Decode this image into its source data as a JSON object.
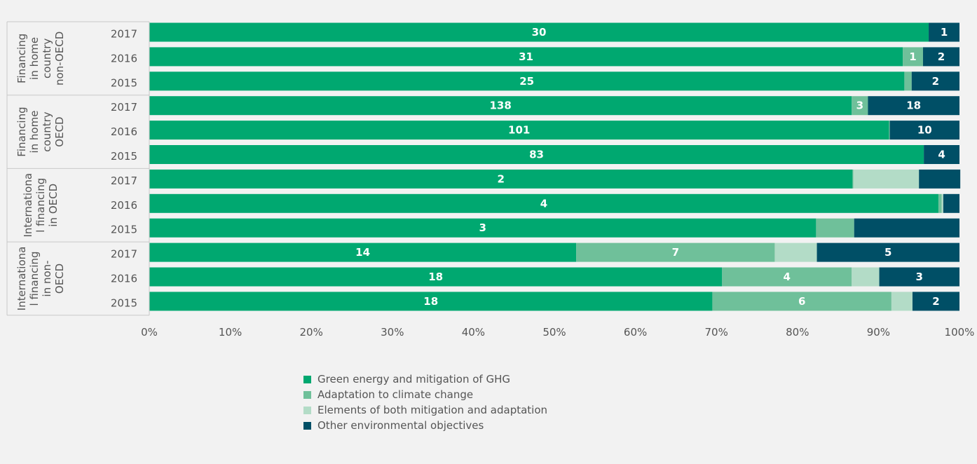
{
  "chart_data": {
    "type": "bar",
    "orientation": "horizontal",
    "stacking": "percent",
    "groups": [
      {
        "lines": [
          "Financing",
          "in home",
          "country",
          "non-OECD"
        ],
        "categories": [
          "2017",
          "2016",
          "2015"
        ]
      },
      {
        "lines": [
          "Financing",
          "in home",
          "country",
          "OECD"
        ],
        "categories": [
          "2017",
          "2016",
          "2015"
        ]
      },
      {
        "lines": [
          "Internationa",
          "l financing",
          "in OECD"
        ],
        "categories": [
          "2017",
          "2016",
          "2015"
        ]
      },
      {
        "lines": [
          "Internationa",
          "l financing",
          "in non-",
          "OECD"
        ],
        "categories": [
          "2017",
          "2016",
          "2015"
        ]
      }
    ],
    "series": [
      {
        "name": "Green energy and mitigation of GHG",
        "color": "#00a870",
        "shares": [
          96.2,
          93.0,
          93.2,
          86.7,
          91.3,
          95.6,
          86.8,
          97.4,
          82.3,
          52.7,
          70.7,
          69.5
        ],
        "labels": [
          "30",
          "31",
          "25",
          "138",
          "101",
          "83",
          "2",
          "4",
          "3",
          "14",
          "18",
          "18"
        ]
      },
      {
        "name": "Adaptation to climate change",
        "color": "#6fc09a",
        "shares": [
          0,
          2.5,
          0.9,
          2.0,
          0.1,
          0,
          0.1,
          0.4,
          4.7,
          24.5,
          16.0,
          22.1
        ],
        "labels": [
          "",
          "1",
          "",
          "3",
          "",
          "",
          "",
          "",
          "",
          "7",
          "4",
          "6"
        ]
      },
      {
        "name": "Elements of both mitigation and adaptation",
        "color": "#b3dcc7",
        "shares": [
          0,
          0,
          0,
          0,
          0,
          0,
          8.1,
          0.2,
          0,
          5.2,
          3.4,
          2.6
        ],
        "labels": [
          "",
          "",
          "",
          "",
          "",
          "",
          "",
          "",
          "",
          "",
          "",
          ""
        ]
      },
      {
        "name": "Other environmental objectives",
        "color": "#004f66",
        "shares": [
          3.8,
          4.5,
          5.9,
          11.3,
          8.6,
          4.4,
          5.1,
          2.0,
          13.0,
          17.6,
          9.9,
          5.8
        ],
        "labels": [
          "1",
          "2",
          "2",
          "18",
          "10",
          "4",
          "",
          "",
          "",
          "5",
          "3",
          "2"
        ]
      }
    ],
    "x_ticks": [
      "0%",
      "10%",
      "20%",
      "30%",
      "40%",
      "50%",
      "60%",
      "70%",
      "80%",
      "90%",
      "100%"
    ],
    "xlim": [
      0,
      100
    ],
    "grid": false,
    "legend_position": "bottom"
  },
  "legend": [
    {
      "label": "Green energy and mitigation of GHG",
      "color": "#00a870"
    },
    {
      "label": "Adaptation to climate change",
      "color": "#6fc09a"
    },
    {
      "label": "Elements of both mitigation and adaptation",
      "color": "#b3dcc7"
    },
    {
      "label": "Other environmental objectives",
      "color": "#004f66"
    }
  ]
}
